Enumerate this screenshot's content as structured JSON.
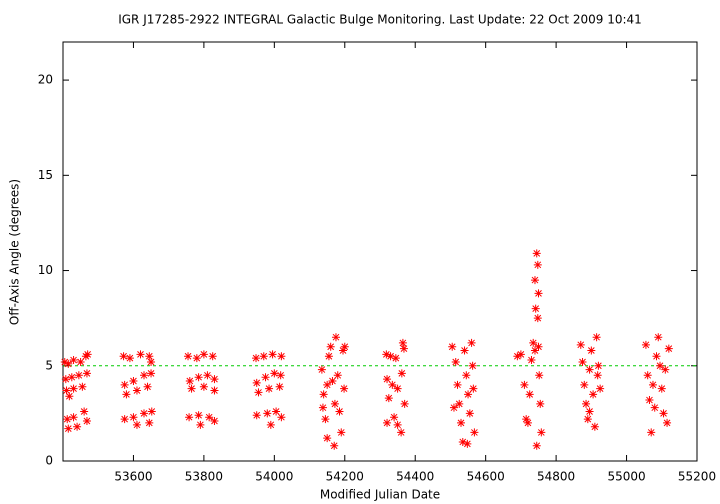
{
  "chart_data": {
    "type": "scatter",
    "title": "IGR J17285-2922   INTEGRAL Galactic Bulge Monitoring.  Last Update: 22 Oct 2009 10:41",
    "xlabel": "Modified Julian Date",
    "ylabel": "Off-Axis Angle (degrees)",
    "xlim": [
      53400,
      55200
    ],
    "ylim": [
      0,
      22
    ],
    "xticks": [
      53600,
      53800,
      54000,
      54200,
      54400,
      54600,
      54800,
      55000,
      55200
    ],
    "yticks": [
      0,
      5,
      10,
      15,
      20
    ],
    "hline": {
      "y": 5,
      "color": "#00cc00"
    },
    "series": [
      {
        "color": "#ff0000",
        "x": [
          53405,
          53415,
          53430,
          53450,
          53465,
          53470,
          53408,
          53425,
          53445,
          53468,
          53410,
          53430,
          53455,
          53418,
          53412,
          53430,
          53460,
          53415,
          53440,
          53468,
          53572,
          53590,
          53620,
          53645,
          53650,
          53575,
          53600,
          53630,
          53650,
          53580,
          53610,
          53640,
          53575,
          53600,
          53630,
          53652,
          53610,
          53645,
          53755,
          53780,
          53800,
          53825,
          53760,
          53785,
          53810,
          53830,
          53765,
          53800,
          53830,
          53758,
          53785,
          53815,
          53830,
          53790,
          53948,
          53970,
          53995,
          54020,
          53950,
          53975,
          54000,
          54018,
          53955,
          53985,
          54015,
          53950,
          53980,
          54005,
          54020,
          53990,
          54135,
          54140,
          54145,
          54150,
          54155,
          54160,
          54165,
          54170,
          54172,
          54175,
          54180,
          54185,
          54190,
          54195,
          54198,
          54200,
          54138,
          54150,
          54318,
          54330,
          54345,
          54320,
          54335,
          54350,
          54325,
          54340,
          54320,
          54350,
          54360,
          54365,
          54368,
          54362,
          54370,
          54505,
          54515,
          54520,
          54525,
          54530,
          54535,
          54540,
          54545,
          54550,
          54555,
          54560,
          54563,
          54565,
          54568,
          54510,
          54548,
          54690,
          54700,
          54710,
          54715,
          54720,
          54725,
          54730,
          54735,
          54740,
          54742,
          54745,
          54748,
          54750,
          54752,
          54755,
          54758,
          54745,
          54740,
          54748,
          54750,
          54870,
          54875,
          54880,
          54885,
          54890,
          54895,
          54900,
          54905,
          54910,
          54915,
          54918,
          54920,
          54925,
          54895,
          55055,
          55060,
          55065,
          55070,
          55075,
          55085,
          55090,
          55095,
          55100,
          55105,
          55110,
          55115,
          55120,
          55080
        ],
        "y": [
          5.2,
          5.1,
          5.3,
          5.2,
          5.5,
          5.6,
          4.3,
          4.4,
          4.5,
          4.6,
          3.7,
          3.8,
          3.9,
          3.4,
          2.2,
          2.3,
          2.6,
          1.7,
          1.8,
          2.1,
          5.5,
          5.4,
          5.6,
          5.5,
          5.2,
          4.0,
          4.2,
          4.5,
          4.6,
          3.5,
          3.7,
          3.9,
          2.2,
          2.3,
          2.5,
          2.6,
          1.9,
          2.0,
          5.5,
          5.4,
          5.6,
          5.5,
          4.2,
          4.4,
          4.5,
          4.3,
          3.8,
          3.9,
          3.7,
          2.3,
          2.4,
          2.3,
          2.1,
          1.9,
          5.4,
          5.5,
          5.6,
          5.5,
          4.1,
          4.4,
          4.6,
          4.5,
          3.6,
          3.8,
          3.9,
          2.4,
          2.5,
          2.6,
          2.3,
          1.9,
          4.8,
          3.5,
          2.2,
          1.2,
          5.5,
          6.0,
          4.2,
          0.8,
          3.0,
          6.5,
          4.5,
          2.6,
          1.5,
          5.8,
          3.8,
          6.0,
          2.8,
          4.0,
          5.6,
          5.5,
          5.4,
          4.3,
          4.0,
          3.8,
          3.3,
          2.3,
          2.0,
          1.9,
          1.5,
          6.2,
          5.9,
          4.6,
          3.0,
          6.0,
          5.2,
          4.0,
          3.0,
          2.0,
          1.0,
          5.8,
          4.5,
          3.5,
          2.5,
          6.2,
          5.0,
          3.8,
          1.5,
          2.8,
          0.9,
          5.5,
          5.6,
          4.0,
          2.2,
          2.0,
          3.5,
          5.3,
          6.2,
          9.5,
          8.0,
          10.9,
          7.5,
          6.0,
          4.5,
          3.0,
          1.5,
          0.8,
          5.8,
          10.3,
          8.8,
          6.1,
          5.2,
          4.0,
          3.0,
          2.2,
          4.8,
          5.8,
          3.5,
          1.8,
          6.5,
          4.5,
          5.0,
          3.8,
          2.6,
          6.1,
          4.5,
          3.2,
          1.5,
          4.0,
          5.5,
          6.5,
          5.0,
          3.8,
          2.5,
          4.8,
          2.0,
          5.9,
          2.8
        ]
      }
    ]
  }
}
